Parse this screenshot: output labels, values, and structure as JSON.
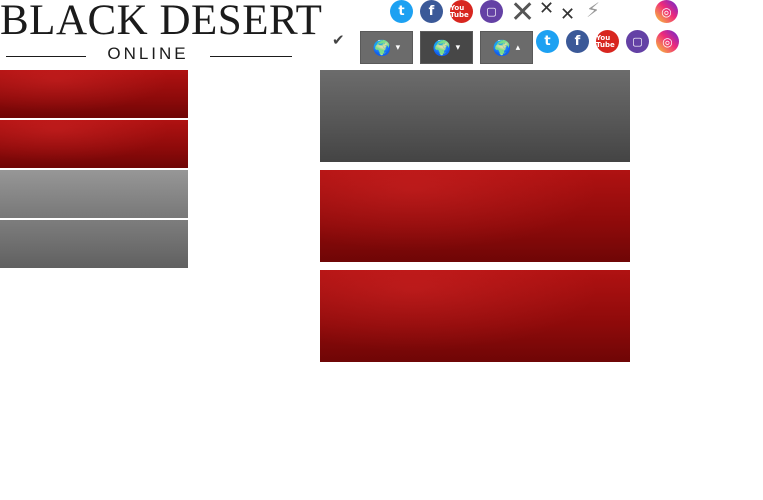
{
  "logo": {
    "title": "BLACK DESERT",
    "subtitle": "ONLINE"
  },
  "icons": {
    "twitter": "twitter-icon",
    "facebook": "facebook-icon",
    "youtube": "youtube-icon",
    "twitch": "twitch-icon",
    "instagram": "instagram-icon",
    "close": "close-icon",
    "plug": "plug-icon",
    "check": "check-icon",
    "globe": "globe-icon"
  },
  "glyphs": {
    "twitter": "t",
    "facebook": "f",
    "youtube": "You Tube",
    "twitch": "▢",
    "instagram": "◎",
    "close": "✕",
    "plug": "⚡",
    "check": "✔",
    "globe": "🌍",
    "caret_down": "▾",
    "caret_up": "▴"
  },
  "colors": {
    "red_bar": "#9b0d0d",
    "gray_bar_light": "#8a8a8a",
    "gray_bar_dark": "#555555",
    "twitter": "#1da1f2",
    "facebook": "#3b5998",
    "youtube": "#d8261f",
    "twitch": "#6441a5"
  }
}
